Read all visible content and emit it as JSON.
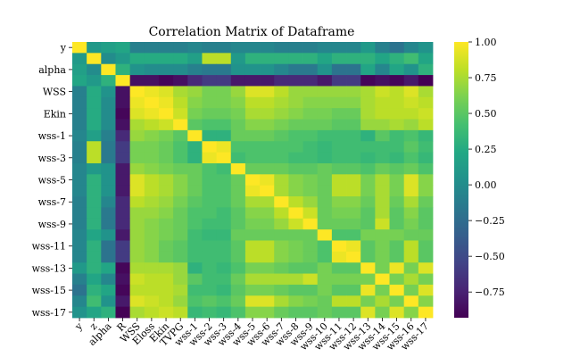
{
  "chart_data": {
    "type": "heatmap",
    "title": "Correlation Matrix of Dataframe",
    "xlabel": "",
    "ylabel": "",
    "colormap": "viridis",
    "vmin": -0.93,
    "vmax": 1.0,
    "categories": [
      "y",
      "z",
      "alpha",
      "R",
      "WSS",
      "Eloss",
      "Ekin",
      "TVPG",
      "wss-1",
      "wss-2",
      "wss-3",
      "wss-4",
      "wss-5",
      "wss-6",
      "wss-7",
      "wss-8",
      "wss-9",
      "wss-10",
      "wss-11",
      "wss-12",
      "wss-13",
      "wss-14",
      "wss-15",
      "wss-16",
      "wss-17"
    ],
    "y_tick_labels": [
      "y",
      "alpha",
      "WSS",
      "Ekin",
      "wss-1",
      "wss-3",
      "wss-5",
      "wss-7",
      "wss-9",
      "wss-11",
      "wss-13",
      "wss-15",
      "wss-17"
    ],
    "colorbar_ticks": [
      {
        "value": 1.0,
        "label": "1.00"
      },
      {
        "value": 0.75,
        "label": "0.75"
      },
      {
        "value": 0.5,
        "label": "0.50"
      },
      {
        "value": 0.25,
        "label": "0.25"
      },
      {
        "value": 0.0,
        "label": "0.00"
      },
      {
        "value": -0.25,
        "label": "−0.25"
      },
      {
        "value": -0.5,
        "label": "−0.50"
      },
      {
        "value": -0.75,
        "label": "−0.75"
      }
    ],
    "values": [
      [
        1.0,
        0.1,
        0.15,
        0.2,
        -0.1,
        -0.1,
        -0.1,
        -0.1,
        -0.05,
        -0.1,
        -0.1,
        -0.05,
        -0.05,
        -0.05,
        -0.1,
        -0.1,
        -0.1,
        -0.05,
        -0.05,
        -0.05,
        0.1,
        -0.1,
        -0.2,
        -0.05,
        0.05
      ],
      [
        0.1,
        1.0,
        0.0,
        0.1,
        0.25,
        0.25,
        0.25,
        0.25,
        0.15,
        0.8,
        0.8,
        0.1,
        0.3,
        0.3,
        0.3,
        0.3,
        0.3,
        0.2,
        0.3,
        0.3,
        0.3,
        0.2,
        0.3,
        0.4,
        0.2
      ],
      [
        0.15,
        0.0,
        1.0,
        0.3,
        0.05,
        0.0,
        0.0,
        0.0,
        -0.1,
        -0.15,
        -0.15,
        0.05,
        0.05,
        0.05,
        -0.05,
        -0.15,
        -0.15,
        0.05,
        -0.2,
        -0.2,
        0.2,
        -0.05,
        0.2,
        0.05,
        0.3
      ],
      [
        0.2,
        0.1,
        0.3,
        1.0,
        -0.85,
        -0.85,
        -0.9,
        -0.85,
        -0.7,
        -0.6,
        -0.6,
        -0.8,
        -0.8,
        -0.8,
        -0.7,
        -0.7,
        -0.7,
        -0.8,
        -0.6,
        -0.6,
        -0.9,
        -0.85,
        -0.9,
        -0.8,
        -0.93
      ],
      [
        -0.1,
        0.25,
        0.05,
        -0.85,
        1.0,
        0.95,
        0.9,
        0.75,
        0.7,
        0.6,
        0.6,
        0.7,
        0.9,
        0.9,
        0.8,
        0.7,
        0.7,
        0.7,
        0.7,
        0.7,
        0.75,
        0.85,
        0.8,
        0.9,
        0.75
      ],
      [
        -0.1,
        0.25,
        0.0,
        -0.85,
        0.95,
        1.0,
        0.95,
        0.8,
        0.65,
        0.6,
        0.6,
        0.65,
        0.8,
        0.8,
        0.75,
        0.7,
        0.65,
        0.65,
        0.65,
        0.65,
        0.75,
        0.8,
        0.8,
        0.85,
        0.8
      ],
      [
        -0.1,
        0.25,
        0.0,
        -0.9,
        0.9,
        0.95,
        1.0,
        0.85,
        0.6,
        0.55,
        0.55,
        0.6,
        0.75,
        0.75,
        0.7,
        0.65,
        0.6,
        0.6,
        0.55,
        0.55,
        0.75,
        0.8,
        0.8,
        0.8,
        0.85
      ],
      [
        -0.1,
        0.25,
        0.0,
        -0.85,
        0.75,
        0.8,
        0.85,
        1.0,
        0.5,
        0.45,
        0.45,
        0.55,
        0.65,
        0.65,
        0.6,
        0.55,
        0.55,
        0.55,
        0.5,
        0.5,
        0.7,
        0.7,
        0.75,
        0.7,
        0.8
      ],
      [
        -0.05,
        0.15,
        -0.1,
        -0.7,
        0.7,
        0.65,
        0.6,
        0.5,
        1.0,
        0.3,
        0.3,
        0.55,
        0.55,
        0.55,
        0.5,
        0.45,
        0.45,
        0.4,
        0.4,
        0.4,
        0.3,
        0.5,
        0.4,
        0.45,
        0.35
      ],
      [
        -0.1,
        0.8,
        -0.15,
        -0.6,
        0.6,
        0.6,
        0.55,
        0.45,
        0.3,
        1.0,
        0.95,
        0.45,
        0.45,
        0.45,
        0.45,
        0.45,
        0.4,
        0.35,
        0.4,
        0.4,
        0.4,
        0.4,
        0.4,
        0.5,
        0.4
      ],
      [
        -0.1,
        0.8,
        -0.15,
        -0.6,
        0.6,
        0.6,
        0.55,
        0.45,
        0.3,
        0.95,
        1.0,
        0.4,
        0.45,
        0.45,
        0.45,
        0.4,
        0.4,
        0.35,
        0.4,
        0.4,
        0.35,
        0.4,
        0.35,
        0.45,
        0.35
      ],
      [
        -0.05,
        0.1,
        0.05,
        -0.8,
        0.7,
        0.65,
        0.6,
        0.55,
        0.55,
        0.45,
        0.4,
        1.0,
        0.55,
        0.55,
        0.55,
        0.5,
        0.5,
        0.55,
        0.5,
        0.5,
        0.45,
        0.55,
        0.5,
        0.55,
        0.45
      ],
      [
        -0.05,
        0.3,
        0.05,
        -0.8,
        0.9,
        0.8,
        0.75,
        0.65,
        0.55,
        0.45,
        0.45,
        0.55,
        1.0,
        0.95,
        0.75,
        0.65,
        0.6,
        0.55,
        0.8,
        0.8,
        0.6,
        0.75,
        0.6,
        0.9,
        0.65
      ],
      [
        -0.05,
        0.3,
        0.05,
        -0.8,
        0.9,
        0.8,
        0.75,
        0.65,
        0.55,
        0.45,
        0.45,
        0.55,
        0.95,
        1.0,
        0.75,
        0.65,
        0.6,
        0.55,
        0.8,
        0.8,
        0.6,
        0.75,
        0.6,
        0.9,
        0.65
      ],
      [
        -0.1,
        0.3,
        -0.05,
        -0.7,
        0.8,
        0.75,
        0.7,
        0.6,
        0.5,
        0.45,
        0.45,
        0.55,
        0.75,
        0.75,
        1.0,
        0.8,
        0.7,
        0.55,
        0.65,
        0.65,
        0.55,
        0.75,
        0.55,
        0.75,
        0.55
      ],
      [
        -0.1,
        0.3,
        -0.15,
        -0.7,
        0.7,
        0.7,
        0.65,
        0.55,
        0.45,
        0.45,
        0.4,
        0.5,
        0.65,
        0.65,
        0.8,
        1.0,
        0.85,
        0.55,
        0.6,
        0.6,
        0.5,
        0.75,
        0.5,
        0.65,
        0.5
      ],
      [
        -0.1,
        0.3,
        -0.15,
        -0.7,
        0.7,
        0.65,
        0.6,
        0.55,
        0.45,
        0.4,
        0.4,
        0.5,
        0.6,
        0.6,
        0.7,
        0.85,
        1.0,
        0.55,
        0.55,
        0.55,
        0.5,
        0.85,
        0.5,
        0.6,
        0.5
      ],
      [
        -0.05,
        0.2,
        0.05,
        -0.8,
        0.7,
        0.65,
        0.6,
        0.55,
        0.4,
        0.35,
        0.35,
        0.55,
        0.55,
        0.55,
        0.55,
        0.55,
        0.55,
        1.0,
        0.45,
        0.45,
        0.6,
        0.6,
        0.6,
        0.55,
        0.55
      ],
      [
        -0.05,
        0.3,
        -0.2,
        -0.6,
        0.7,
        0.65,
        0.55,
        0.5,
        0.4,
        0.4,
        0.4,
        0.5,
        0.8,
        0.8,
        0.65,
        0.6,
        0.55,
        0.45,
        1.0,
        0.95,
        0.5,
        0.6,
        0.5,
        0.8,
        0.5
      ],
      [
        -0.05,
        0.3,
        -0.2,
        -0.6,
        0.7,
        0.65,
        0.55,
        0.5,
        0.4,
        0.4,
        0.4,
        0.5,
        0.8,
        0.8,
        0.65,
        0.6,
        0.55,
        0.45,
        0.95,
        1.0,
        0.5,
        0.6,
        0.5,
        0.8,
        0.5
      ],
      [
        0.1,
        0.3,
        0.2,
        -0.9,
        0.75,
        0.75,
        0.75,
        0.7,
        0.3,
        0.4,
        0.35,
        0.45,
        0.6,
        0.6,
        0.55,
        0.5,
        0.5,
        0.6,
        0.5,
        0.5,
        1.0,
        0.6,
        0.95,
        0.6,
        0.9
      ],
      [
        -0.1,
        0.2,
        -0.05,
        -0.85,
        0.85,
        0.8,
        0.8,
        0.7,
        0.5,
        0.4,
        0.4,
        0.55,
        0.75,
        0.75,
        0.75,
        0.75,
        0.85,
        0.6,
        0.6,
        0.6,
        0.6,
        1.0,
        0.6,
        0.75,
        0.6
      ],
      [
        -0.2,
        0.3,
        0.2,
        -0.9,
        0.8,
        0.8,
        0.8,
        0.75,
        0.4,
        0.4,
        0.35,
        0.5,
        0.6,
        0.6,
        0.55,
        0.5,
        0.5,
        0.6,
        0.5,
        0.5,
        0.95,
        0.6,
        1.0,
        0.6,
        0.9
      ],
      [
        -0.05,
        0.4,
        0.05,
        -0.8,
        0.9,
        0.85,
        0.8,
        0.7,
        0.45,
        0.5,
        0.45,
        0.55,
        0.9,
        0.9,
        0.75,
        0.65,
        0.6,
        0.55,
        0.8,
        0.8,
        0.6,
        0.75,
        0.6,
        1.0,
        0.65
      ],
      [
        0.05,
        0.2,
        0.3,
        -0.93,
        0.75,
        0.8,
        0.85,
        0.8,
        0.35,
        0.4,
        0.35,
        0.45,
        0.65,
        0.65,
        0.55,
        0.5,
        0.5,
        0.55,
        0.5,
        0.5,
        0.9,
        0.6,
        0.9,
        0.65,
        1.0
      ]
    ]
  }
}
